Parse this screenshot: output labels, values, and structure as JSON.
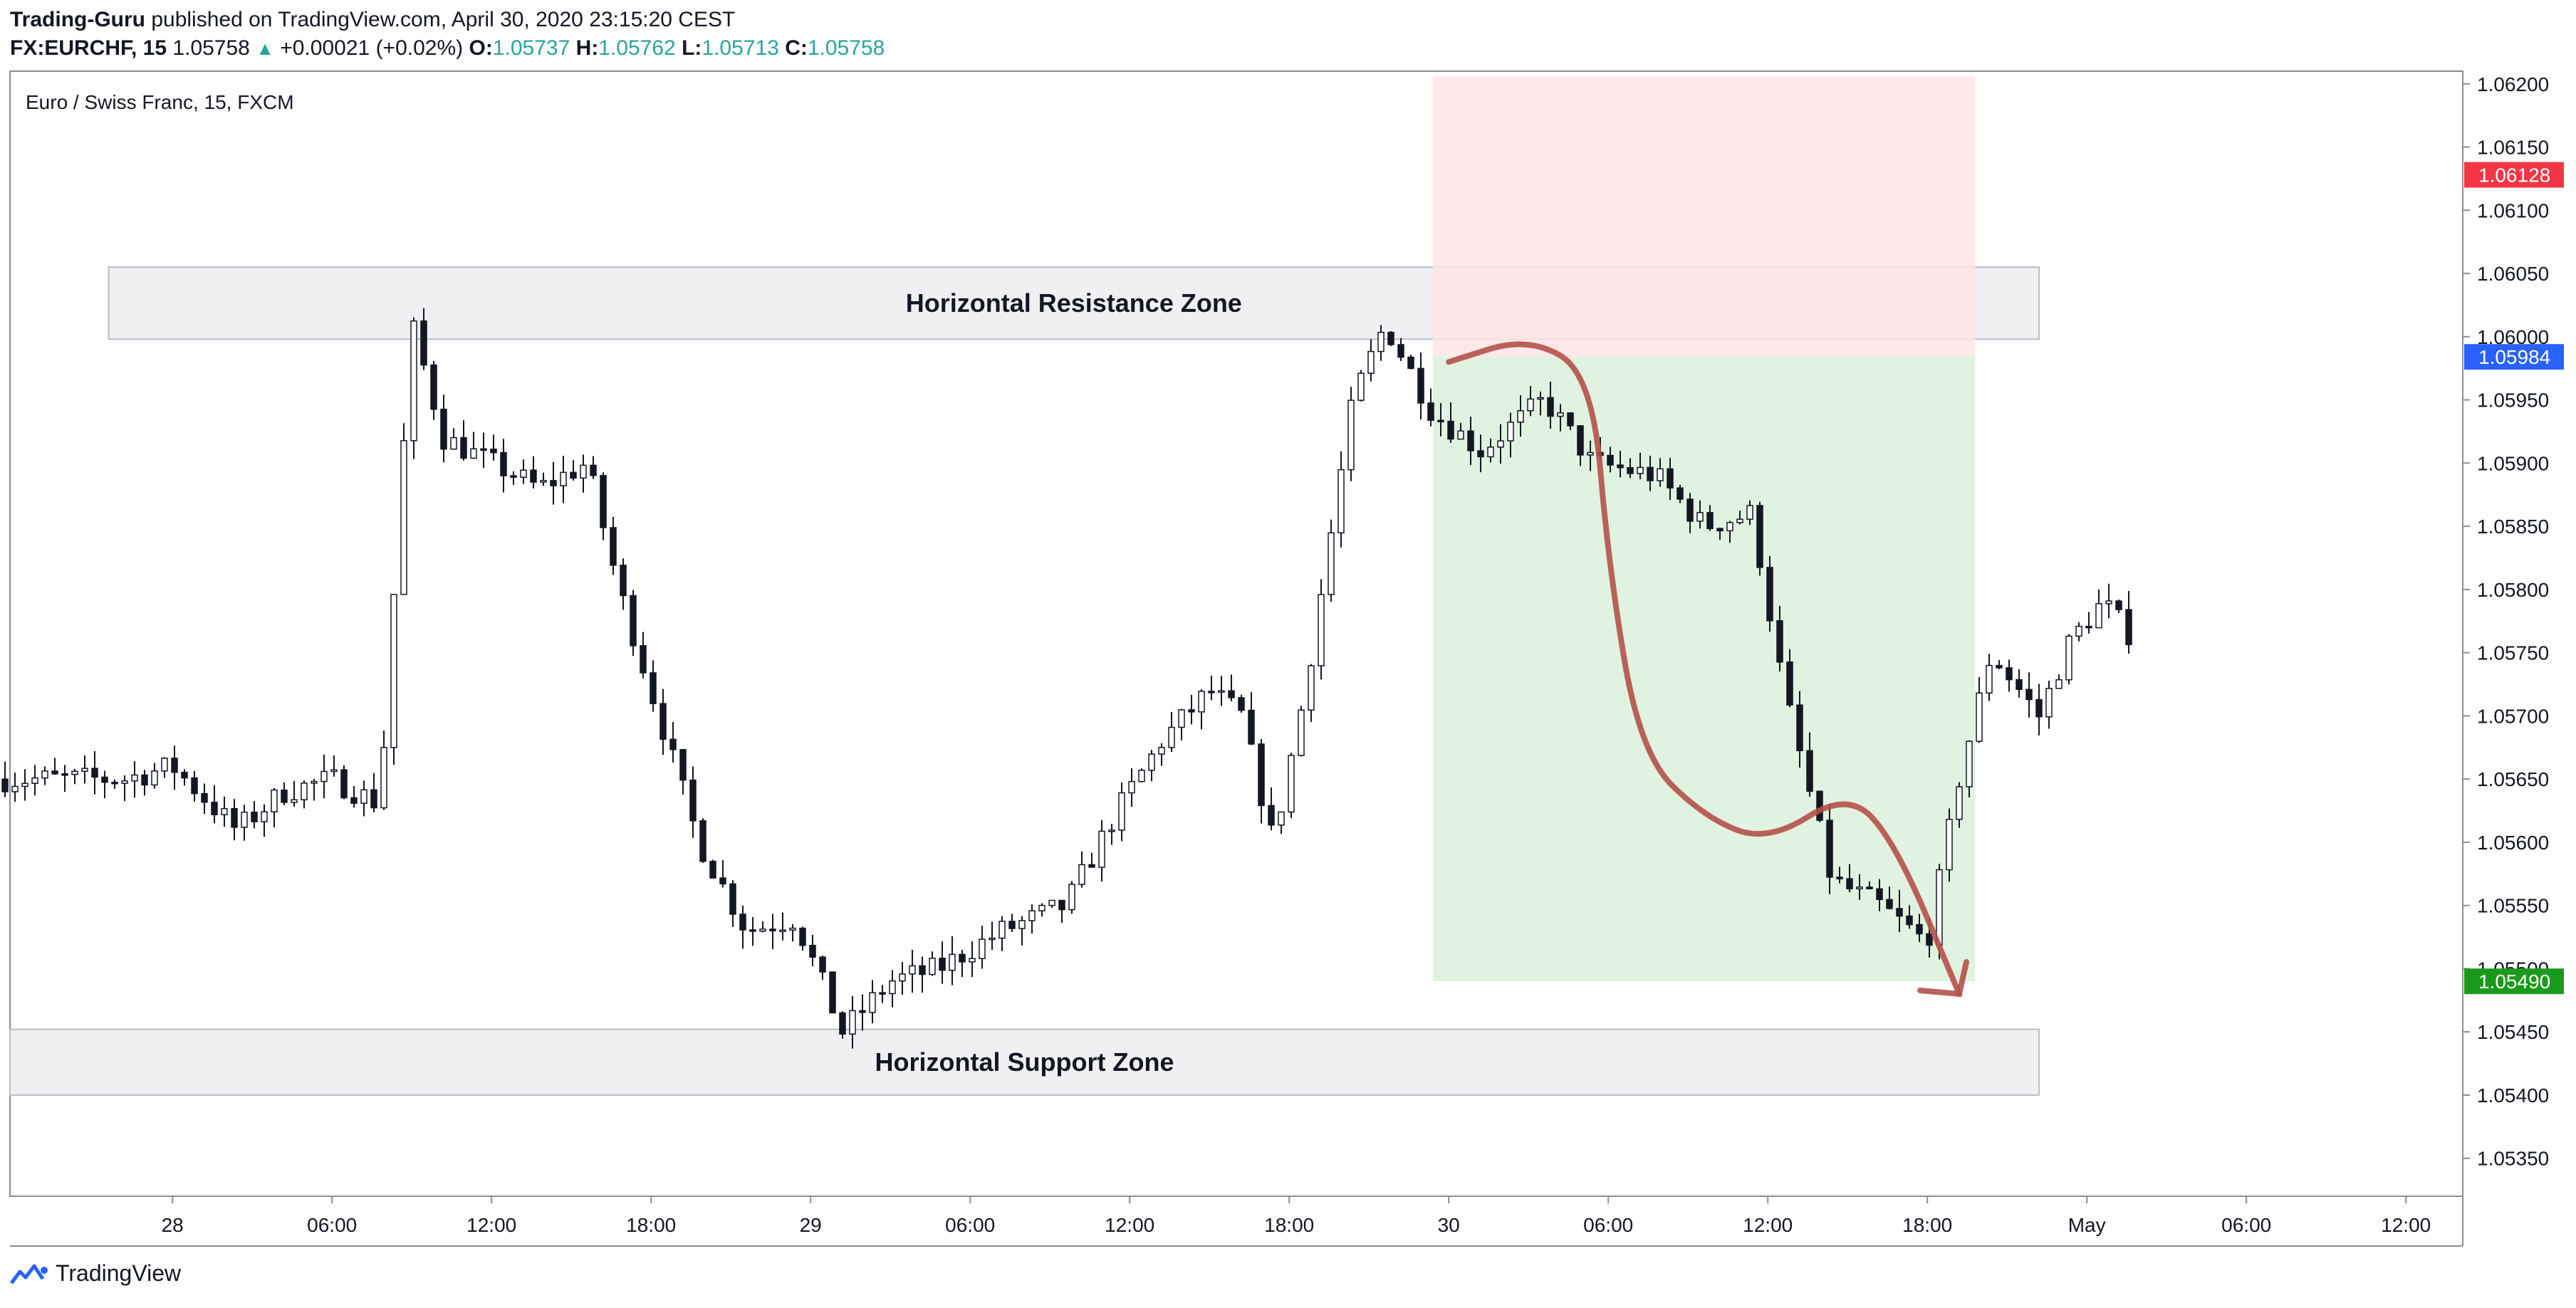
{
  "header": {
    "publisher": "Trading-Guru",
    "published_text": " published on TradingView.com, April 30, 2020 23:15:20 CEST",
    "symbol": "FX:EURCHF, 15",
    "last": "1.05758",
    "change": "+0.00021 (+0.02%)",
    "o_label": "O:",
    "o_value": "1.05737",
    "h_label": "H:",
    "h_value": "1.05762",
    "l_label": "L:",
    "l_value": "1.05713",
    "c_label": "C:",
    "c_value": "1.05758"
  },
  "footer": {
    "brand": "TradingView"
  },
  "colors": {
    "up": "#26a69a",
    "candle": "#131722",
    "zone_fill": "#f0f0f3",
    "stop_fill": "#fde5e5",
    "target_fill": "#ddf2dd",
    "arrow": "#b5514a",
    "stop_tag": "#f23645",
    "entry_tag": "#2962ff",
    "target_tag": "#1a9a1a"
  },
  "chart_data": {
    "type": "candlestick",
    "title": "Euro / Swiss Franc, 15, FXCM",
    "ylim": [
      1.0532,
      1.0621
    ],
    "y_ticks": [
      "1.06200",
      "1.06150",
      "1.06100",
      "1.06050",
      "1.06000",
      "1.05950",
      "1.05900",
      "1.05850",
      "1.05800",
      "1.05750",
      "1.05700",
      "1.05650",
      "1.05600",
      "1.05550",
      "1.05500",
      "1.05450",
      "1.05400",
      "1.05350"
    ],
    "x_ticks": [
      {
        "label": "28",
        "t": 0.3
      },
      {
        "label": "06:00",
        "t": 1.3
      },
      {
        "label": "12:00",
        "t": 2.3
      },
      {
        "label": "18:00",
        "t": 3.3
      },
      {
        "label": "29",
        "t": 4.3
      },
      {
        "label": "06:00",
        "t": 5.3
      },
      {
        "label": "12:00",
        "t": 6.3
      },
      {
        "label": "18:00",
        "t": 7.3
      },
      {
        "label": "30",
        "t": 8.3
      },
      {
        "label": "06:00",
        "t": 9.3
      },
      {
        "label": "12:00",
        "t": 10.3
      },
      {
        "label": "18:00",
        "t": 11.3
      },
      {
        "label": "May",
        "t": 12.3
      },
      {
        "label": "06:00",
        "t": 13.3
      },
      {
        "label": "12:00",
        "t": 14.3
      }
    ],
    "series": [
      {
        "t": 0.0,
        "price": 1.0565
      },
      {
        "t": 0.3,
        "price": 1.0566
      },
      {
        "t": 0.7,
        "price": 1.0561
      },
      {
        "t": 1.0,
        "price": 1.0564
      },
      {
        "t": 1.3,
        "price": 1.0565
      },
      {
        "t": 1.6,
        "price": 1.0563
      },
      {
        "t": 1.8,
        "price": 1.0601
      },
      {
        "t": 2.0,
        "price": 1.0592
      },
      {
        "t": 2.3,
        "price": 1.059
      },
      {
        "t": 2.6,
        "price": 1.0588
      },
      {
        "t": 2.9,
        "price": 1.059
      },
      {
        "t": 3.1,
        "price": 1.058
      },
      {
        "t": 3.3,
        "price": 1.0572
      },
      {
        "t": 3.6,
        "price": 1.056
      },
      {
        "t": 3.9,
        "price": 1.0553
      },
      {
        "t": 4.2,
        "price": 1.0554
      },
      {
        "t": 4.5,
        "price": 1.0545
      },
      {
        "t": 4.8,
        "price": 1.0549
      },
      {
        "t": 5.1,
        "price": 1.055
      },
      {
        "t": 5.5,
        "price": 1.0553
      },
      {
        "t": 5.9,
        "price": 1.0555
      },
      {
        "t": 6.2,
        "price": 1.0562
      },
      {
        "t": 6.5,
        "price": 1.0568
      },
      {
        "t": 6.8,
        "price": 1.0572
      },
      {
        "t": 7.0,
        "price": 1.057
      },
      {
        "t": 7.2,
        "price": 1.056
      },
      {
        "t": 7.4,
        "price": 1.0572
      },
      {
        "t": 7.7,
        "price": 1.0595
      },
      {
        "t": 7.9,
        "price": 1.0601
      },
      {
        "t": 8.2,
        "price": 1.0594
      },
      {
        "t": 8.5,
        "price": 1.0591
      },
      {
        "t": 8.9,
        "price": 1.0595
      },
      {
        "t": 9.2,
        "price": 1.059
      },
      {
        "t": 9.6,
        "price": 1.0589
      },
      {
        "t": 9.9,
        "price": 1.0585
      },
      {
        "t": 10.2,
        "price": 1.0586
      },
      {
        "t": 10.4,
        "price": 1.0572
      },
      {
        "t": 10.7,
        "price": 1.0557
      },
      {
        "t": 11.0,
        "price": 1.0555
      },
      {
        "t": 11.3,
        "price": 1.0552
      },
      {
        "t": 11.5,
        "price": 1.0565
      },
      {
        "t": 11.7,
        "price": 1.0575
      },
      {
        "t": 12.0,
        "price": 1.057
      },
      {
        "t": 12.2,
        "price": 1.0576
      },
      {
        "t": 12.4,
        "price": 1.0579
      },
      {
        "t": 12.6,
        "price": 1.0576
      }
    ],
    "zones": [
      {
        "label": "Horizontal Resistance Zone",
        "y_top": 1.06055,
        "y_bottom": 1.05998,
        "t_start": -0.1,
        "t_end": 12.0
      },
      {
        "label": "Horizontal Support Zone",
        "y_top": 1.05452,
        "y_bottom": 1.054,
        "t_start": -2.2,
        "t_end": 12.0
      }
    ],
    "position": {
      "type": "short",
      "stop": "1.06128",
      "entry": "1.05984",
      "target": "1.05490",
      "t_start": 8.2,
      "t_end": 11.6
    },
    "tags": [
      {
        "label": "1.06128",
        "price": 1.06128,
        "color": "#f23645"
      },
      {
        "label": "1.05984",
        "price": 1.05984,
        "color": "#2962ff"
      },
      {
        "label": "1.05490",
        "price": 1.0549,
        "color": "#1a9a1a"
      }
    ],
    "annotation_path": [
      [
        8.3,
        1.0598
      ],
      [
        8.8,
        1.06
      ],
      [
        9.2,
        1.0597
      ],
      [
        9.3,
        1.0582
      ],
      [
        9.5,
        1.0567
      ],
      [
        9.9,
        1.0562
      ],
      [
        10.3,
        1.056
      ],
      [
        10.8,
        1.0564
      ],
      [
        11.1,
        1.056
      ],
      [
        11.5,
        1.0548
      ]
    ]
  }
}
